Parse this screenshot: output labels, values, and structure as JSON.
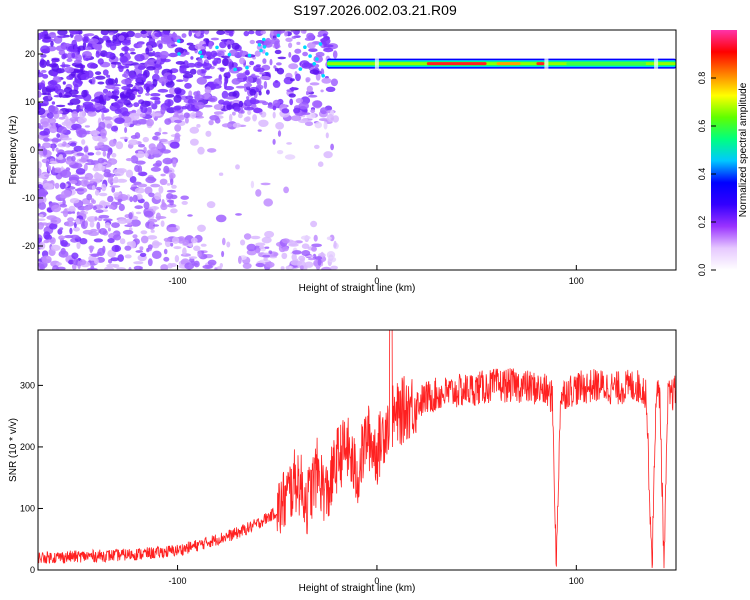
{
  "title": "S197.2026.002.03.21.R09",
  "chart_data": [
    {
      "type": "heatmap",
      "xlabel": "Height of straight line (km)",
      "ylabel": "Frequency (Hz)",
      "xlim": [
        -170,
        150
      ],
      "ylim": [
        -25,
        25
      ],
      "xticks": [
        -100,
        0,
        100
      ],
      "yticks": [
        -20,
        -10,
        0,
        10,
        20
      ],
      "colorbar": {
        "label": "Normalized spectral amplitude",
        "range": [
          0.0,
          1.0
        ],
        "ticks": [
          "0.0",
          "0.2",
          "0.4",
          "0.6",
          "0.8"
        ],
        "colors": [
          "#ffffff",
          "#e6c8ff",
          "#9a33ff",
          "#3300ff",
          "#0000ff",
          "#00c8ff",
          "#00ff80",
          "#60ff00",
          "#ffff00",
          "#ff8000",
          "#ff0000",
          "#ff33aa"
        ]
      },
      "signal_band": {
        "frequency_hz": 18,
        "x_range": [
          -25,
          150
        ],
        "notches": [
          0,
          85,
          140
        ]
      }
    },
    {
      "type": "line",
      "xlabel": "Height of straight line (km)",
      "ylabel": "SNR (10 * v/v)",
      "xlim": [
        -170,
        150
      ],
      "ylim": [
        0,
        390
      ],
      "xticks": [
        -100,
        0,
        100
      ],
      "yticks": [
        0,
        100,
        200,
        300
      ],
      "color": "#ff2020",
      "series": [
        {
          "name": "SNR",
          "x": [
            -170,
            -150,
            -130,
            -110,
            -100,
            -90,
            -80,
            -70,
            -60,
            -50,
            -45,
            -40,
            -35,
            -30,
            -25,
            -20,
            -15,
            -10,
            -5,
            0,
            5,
            10,
            15,
            20,
            25,
            30,
            40,
            50,
            60,
            70,
            80,
            85,
            88,
            90,
            92,
            95,
            100,
            110,
            120,
            130,
            135,
            138,
            140,
            142,
            144,
            146,
            150
          ],
          "y": [
            20,
            22,
            24,
            28,
            32,
            40,
            50,
            60,
            75,
            95,
            120,
            150,
            110,
            160,
            120,
            180,
            200,
            150,
            220,
            190,
            240,
            250,
            265,
            270,
            280,
            285,
            290,
            295,
            300,
            300,
            295,
            290,
            280,
            5,
            280,
            290,
            295,
            300,
            295,
            300,
            290,
            5,
            290,
            280,
            5,
            280,
            290
          ]
        }
      ]
    }
  ]
}
